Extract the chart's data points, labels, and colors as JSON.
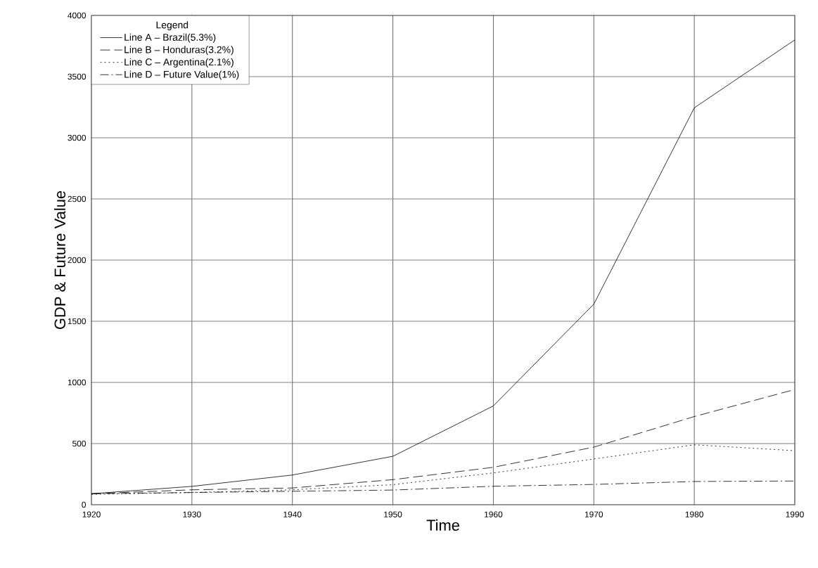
{
  "chart_data": {
    "type": "line",
    "xlabel": "Time",
    "ylabel": "GDP & Future Value",
    "legend_title": "Legend",
    "x": [
      1920,
      1930,
      1940,
      1950,
      1960,
      1970,
      1980,
      1990
    ],
    "series": [
      {
        "name": "Line A – Brazil(5.3%)",
        "color": "#000000",
        "line_style": "solid",
        "values": [
          90,
          150,
          243,
          396,
          808,
          1640,
          3245,
          3800
        ]
      },
      {
        "name": "Line B – Honduras(3.2%)",
        "color": "#000000",
        "line_style": "dashed",
        "values": [
          90,
          122,
          137,
          205,
          306,
          471,
          721,
          942
        ]
      },
      {
        "name": "Line C – Argentina(2.1%)",
        "color": "#000000",
        "line_style": "dotted",
        "values": [
          85,
          100,
          122,
          164,
          260,
          374,
          490,
          442
        ]
      },
      {
        "name": "Line D – Future Value(1%)",
        "color": "#000000",
        "line_style": "dashdot",
        "values": [
          90,
          100,
          110,
          120,
          151,
          166,
          190,
          194
        ]
      }
    ],
    "xlim": [
      1920,
      1990
    ],
    "xticks": [
      1920,
      1930,
      1940,
      1950,
      1960,
      1970,
      1980,
      1990
    ],
    "ylim": [
      0,
      4000
    ],
    "yticks": [
      0,
      500,
      1000,
      1500,
      2000,
      2500,
      3000,
      3500,
      4000
    ],
    "grid": true,
    "legend": "top left",
    "marker": "none"
  }
}
